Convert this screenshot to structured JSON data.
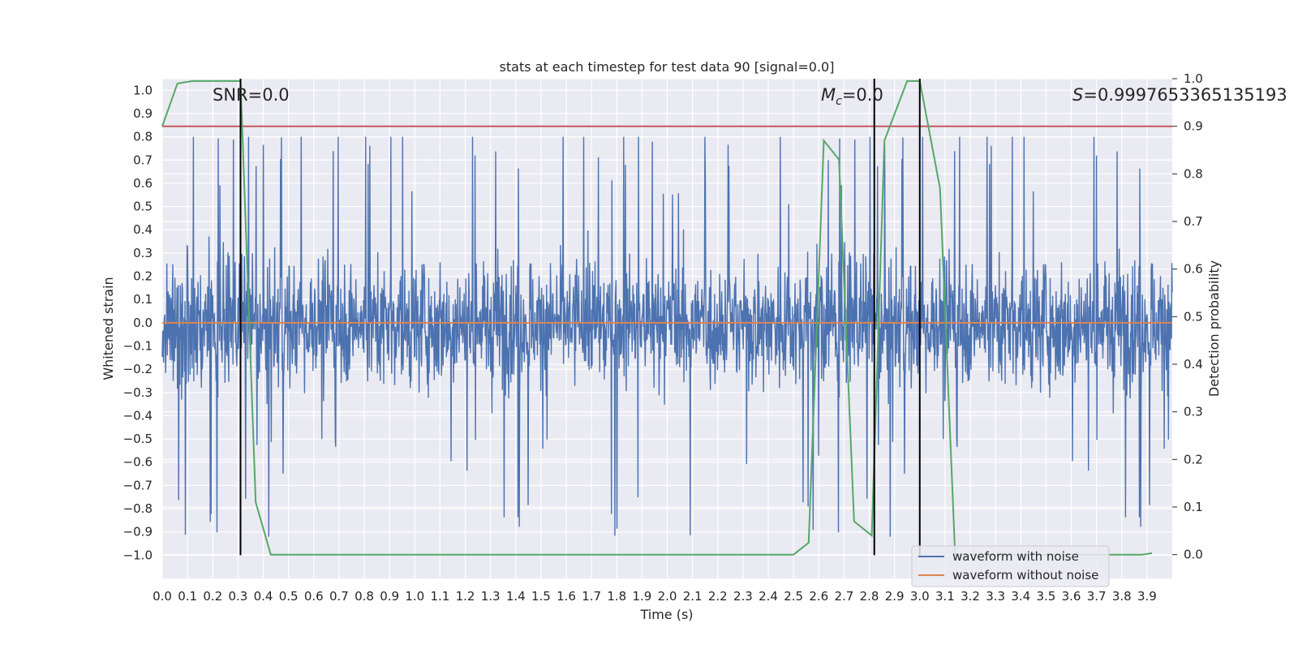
{
  "chart_data": {
    "type": "line",
    "title": "stats at each timestep for test data 90 [signal=0.0]",
    "xlabel": "Time (s)",
    "ylabel": "Whitened strain",
    "ylabel_right": "Detection probability",
    "xlim": [
      0.0,
      4.0
    ],
    "ylim": [
      -1.1,
      1.05
    ],
    "ylim_right": [
      -0.05,
      1.0
    ],
    "x_ticks": [
      "0.0",
      "0.1",
      "0.2",
      "0.3",
      "0.4",
      "0.5",
      "0.6",
      "0.7",
      "0.8",
      "0.9",
      "1.0",
      "1.1",
      "1.2",
      "1.3",
      "1.4",
      "1.5",
      "1.6",
      "1.7",
      "1.8",
      "1.9",
      "2.0",
      "2.1",
      "2.2",
      "2.3",
      "2.4",
      "2.5",
      "2.6",
      "2.7",
      "2.8",
      "2.9",
      "3.0",
      "3.1",
      "3.2",
      "3.3",
      "3.4",
      "3.5",
      "3.6",
      "3.7",
      "3.8",
      "3.9"
    ],
    "y_ticks": [
      "1.0",
      "0.9",
      "0.8",
      "0.7",
      "0.6",
      "0.5",
      "0.4",
      "0.3",
      "0.2",
      "0.1",
      "0.0",
      "−0.1",
      "−0.2",
      "−0.3",
      "−0.4",
      "−0.5",
      "−0.6",
      "−0.7",
      "−0.8",
      "−0.9",
      "−1.0"
    ],
    "y_ticks_right": [
      "1.0",
      "0.9",
      "0.8",
      "0.7",
      "0.6",
      "0.5",
      "0.4",
      "0.3",
      "0.2",
      "0.1",
      "0.0"
    ],
    "annotations": {
      "snr": "SNR=0.0",
      "mc_symbol": "M",
      "mc_sub": "c",
      "mc_value": "=0.0",
      "s_symbol": "S",
      "s_value": "=0.9997653365135193"
    },
    "grid": true,
    "legend_position": "lower right",
    "series": [
      {
        "name": "waveform with noise",
        "color": "#4c72b0",
        "axis": "left",
        "kind": "noise",
        "amplitude_range": [
          -1.0,
          0.8
        ]
      },
      {
        "name": "waveform without noise",
        "color": "#dd8452",
        "axis": "left",
        "values": [
          [
            0.0,
            0.0
          ],
          [
            4.0,
            0.0
          ]
        ]
      },
      {
        "name": "",
        "color": "#55a868",
        "axis": "right",
        "points": [
          [
            0.0,
            0.9
          ],
          [
            0.06,
            0.99
          ],
          [
            0.12,
            0.995
          ],
          [
            0.3,
            0.995
          ],
          [
            0.31,
            0.995
          ],
          [
            0.37,
            0.11
          ],
          [
            0.43,
            0.0
          ],
          [
            1.5,
            0.0
          ],
          [
            2.0,
            0.0
          ],
          [
            2.2,
            0.0
          ],
          [
            2.5,
            0.0
          ],
          [
            2.56,
            0.025
          ],
          [
            2.62,
            0.87
          ],
          [
            2.68,
            0.83
          ],
          [
            2.74,
            0.07
          ],
          [
            2.81,
            0.04
          ],
          [
            2.86,
            0.87
          ],
          [
            2.95,
            0.995
          ],
          [
            3.0,
            0.995
          ],
          [
            3.08,
            0.77
          ],
          [
            3.14,
            0.0
          ],
          [
            3.6,
            0.0
          ],
          [
            3.88,
            0.0
          ],
          [
            3.92,
            0.003
          ]
        ]
      },
      {
        "name": "",
        "color": "#c44e52",
        "axis": "right",
        "values": [
          [
            0.0,
            0.9
          ],
          [
            4.0,
            0.9
          ]
        ]
      }
    ],
    "vertical_markers_x": [
      0.31,
      2.82,
      3.0
    ],
    "legend": [
      "waveform with noise",
      "waveform without noise"
    ]
  }
}
